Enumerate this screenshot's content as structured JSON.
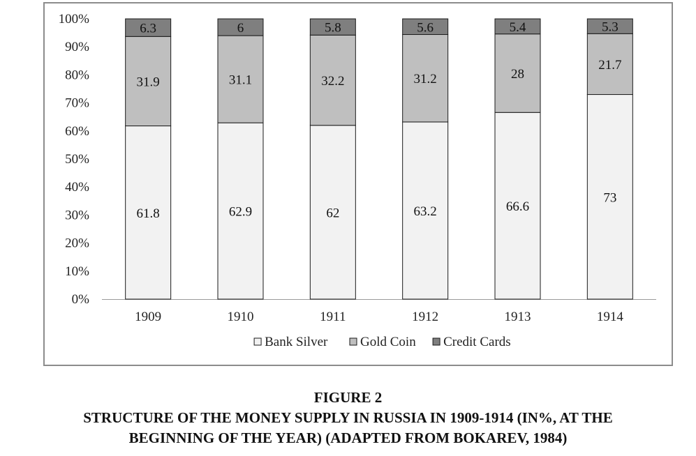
{
  "chart_data": {
    "type": "bar",
    "stacked": true,
    "normalized": true,
    "categories": [
      "1909",
      "1910",
      "1911",
      "1912",
      "1913",
      "1914"
    ],
    "series": [
      {
        "name": "Bank Silver",
        "values": [
          61.8,
          62.9,
          62,
          63.2,
          66.6,
          73
        ],
        "color": "#f2f2f2"
      },
      {
        "name": "Gold Coin",
        "values": [
          31.9,
          31.1,
          32.2,
          31.2,
          28,
          21.7
        ],
        "color": "#bfbfbf"
      },
      {
        "name": "Credit Cards",
        "values": [
          6.3,
          6,
          5.8,
          5.6,
          5.4,
          5.3
        ],
        "color": "#7f7f7f"
      }
    ],
    "ylim": [
      0,
      100
    ],
    "yticks": [
      "0%",
      "10%",
      "20%",
      "30%",
      "40%",
      "50%",
      "60%",
      "70%",
      "80%",
      "90%",
      "100%"
    ],
    "legend": "bottom",
    "grid": false
  },
  "caption": {
    "figure": "FIGURE 2",
    "line1": "STRUCTURE OF THE MONEY SUPPLY IN RUSSIA IN 1909-1914 (IN%, AT THE",
    "line2": "BEGINNING OF THE YEAR) (ADAPTED FROM BOKAREV, 1984)"
  }
}
